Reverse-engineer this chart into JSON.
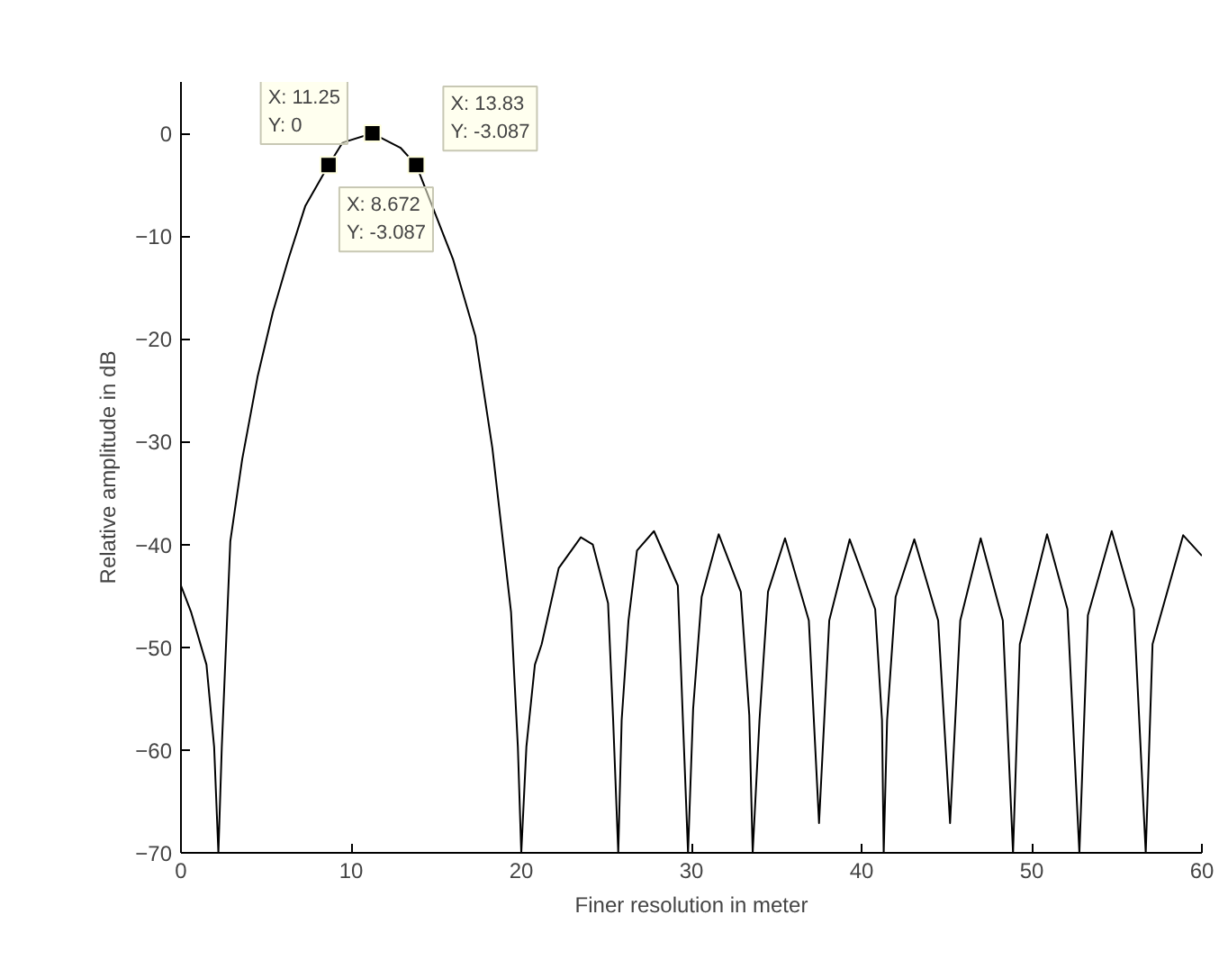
{
  "chart_data": {
    "type": "line",
    "xlabel": "Finer resolution in meter",
    "ylabel": "Relative amplitude in dB",
    "x": [
      0,
      0.6,
      1.5,
      1.95,
      2.2,
      2.4,
      2.9,
      3.6,
      4.5,
      5.4,
      6.3,
      7.3,
      8.672,
      9.5,
      11.25,
      12.9,
      13.83,
      16.0,
      17.3,
      18.3,
      19.4,
      19.8,
      20.0,
      20.3,
      20.8,
      21.2,
      22.2,
      23.5,
      24.2,
      25.1,
      25.4,
      25.7,
      25.9,
      26.3,
      26.8,
      27.8,
      29.2,
      29.5,
      29.8,
      30.1,
      30.6,
      31.6,
      32.9,
      33.4,
      33.6,
      34.0,
      34.5,
      35.5,
      36.9,
      37.5,
      38.1,
      39.3,
      40.8,
      41.2,
      41.3,
      41.5,
      42.0,
      43.1,
      44.5,
      45.2,
      45.8,
      47.0,
      48.3,
      48.9,
      49.3,
      50.9,
      52.1,
      52.8,
      53.3,
      54.7,
      56.0,
      56.7,
      57.1,
      58.9,
      60
    ],
    "series": [
      {
        "color": "#000000",
        "values": [
          -44,
          -46.6,
          -51.7,
          -59.7,
          -70,
          -59.7,
          -39.7,
          -31.7,
          -23.7,
          -17.4,
          -12.3,
          -7.1,
          -3.1,
          -0.9,
          0,
          -1.4,
          -3.1,
          -12.3,
          -19.7,
          -30.6,
          -46.6,
          -59.7,
          -70,
          -59.7,
          -51.7,
          -49.7,
          -42.3,
          -39.3,
          -40,
          -45.7,
          -57.1,
          -70,
          -57.1,
          -47.4,
          -40.6,
          -38.7,
          -44,
          -57.1,
          -70,
          -56,
          -45.1,
          -39,
          -44.6,
          -56.6,
          -70,
          -57.1,
          -44.6,
          -39.4,
          -47.4,
          -67.1,
          -47.4,
          -39.5,
          -46.3,
          -57.1,
          -70,
          -57.1,
          -45.1,
          -39.5,
          -47.4,
          -67.1,
          -47.4,
          -39.4,
          -47.4,
          -70,
          -49.7,
          -39,
          -46.3,
          -70,
          -46.9,
          -38.7,
          -46.3,
          -70,
          -49.7,
          -39.1,
          -41.1
        ]
      }
    ],
    "xlim": [
      0,
      60
    ],
    "xticks": [
      0,
      10,
      20,
      30,
      40,
      50,
      60
    ],
    "ylim": [
      -70,
      5
    ],
    "yticks": [
      -70,
      -60,
      -50,
      -40,
      -30,
      -20,
      -10,
      0
    ],
    "grid": false,
    "line_style": "solid",
    "marker": "none",
    "annotations": [
      {
        "text": "X: 11.25\nY: 0",
        "x": 11.25,
        "y": 0
      },
      {
        "text": "X: 13.83\nY: -3.087",
        "x": 13.83,
        "y": -3.087
      },
      {
        "text": "X: 8.672\nY: -3.087",
        "x": 8.672,
        "y": -3.087
      }
    ]
  }
}
